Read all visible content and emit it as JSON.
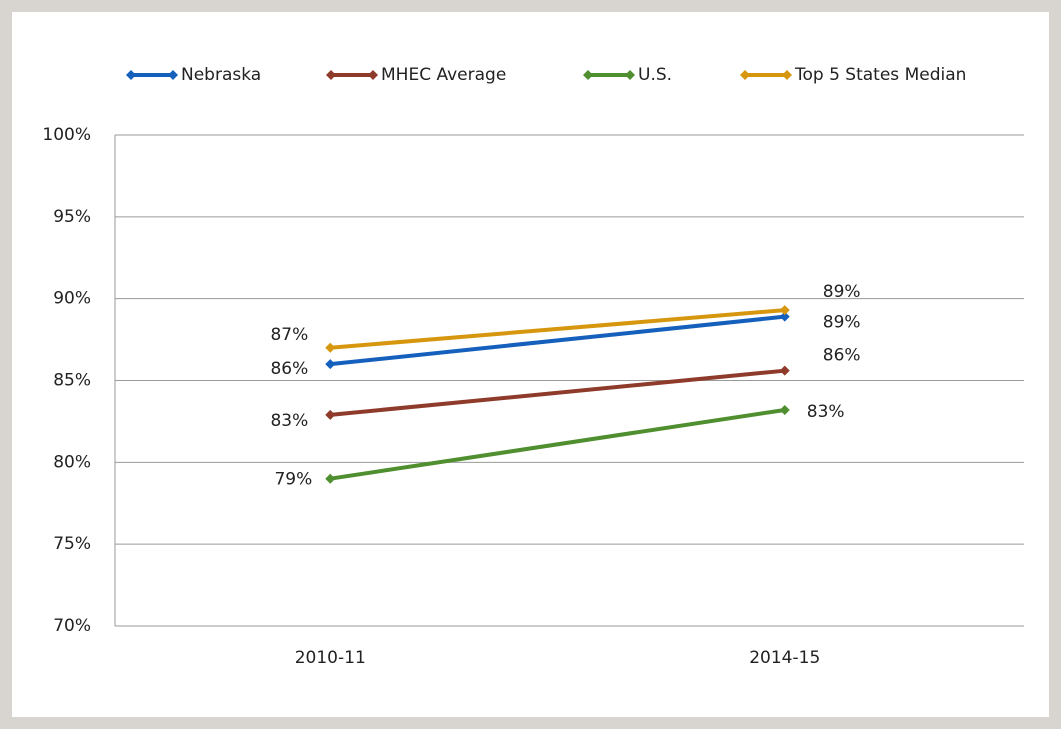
{
  "chart_data": {
    "type": "line",
    "categories": [
      "2010-11",
      "2014-15"
    ],
    "series": [
      {
        "name": "Nebraska",
        "color": "#1560bd",
        "values": [
          86,
          88.9
        ],
        "value_labels": [
          "86%",
          "89%"
        ]
      },
      {
        "name": "MHEC Average",
        "color": "#8e3b2b",
        "values": [
          82.9,
          85.6
        ],
        "value_labels": [
          "83%",
          "86%"
        ]
      },
      {
        "name": "U.S.",
        "color": "#4f8f2f",
        "values": [
          79,
          83.2
        ],
        "value_labels": [
          "79%",
          "83%"
        ]
      },
      {
        "name": "Top 5 States Median",
        "color": "#d6970f",
        "values": [
          87,
          89.3
        ],
        "value_labels": [
          "87%",
          "89%"
        ]
      }
    ],
    "ylim": [
      70,
      100
    ],
    "yticks": [
      {
        "value": 70,
        "label": "70%"
      },
      {
        "value": 75,
        "label": "75%"
      },
      {
        "value": 80,
        "label": "80%"
      },
      {
        "value": 85,
        "label": "85%"
      },
      {
        "value": 90,
        "label": "90%"
      },
      {
        "value": 95,
        "label": "95%"
      },
      {
        "value": 100,
        "label": "100%"
      }
    ],
    "grid": true,
    "legend": "top"
  }
}
